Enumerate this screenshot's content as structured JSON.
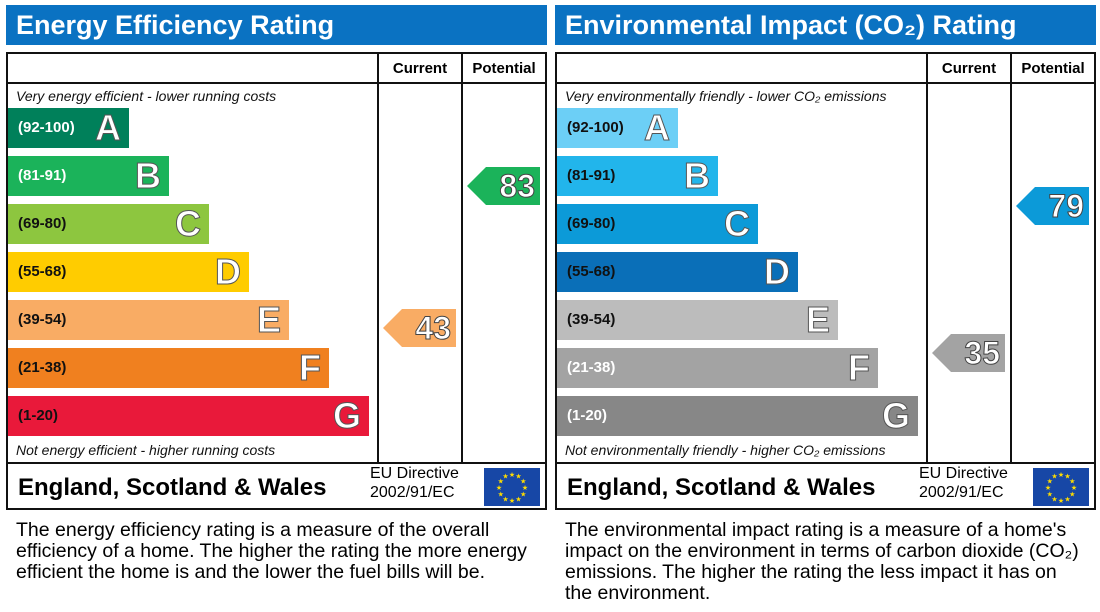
{
  "chart_data": [
    {
      "type": "table",
      "title": "Energy Efficiency Rating",
      "columns": [
        "Current",
        "Potential"
      ],
      "top_note": "Very energy efficient - lower running costs",
      "bottom_note": "Not energy efficient - higher running costs",
      "bands": [
        {
          "letter": "A",
          "range": "(92-100)",
          "color": "#00805a",
          "text": "#fff"
        },
        {
          "letter": "B",
          "range": "(81-91)",
          "color": "#1bb35a",
          "text": "#fff"
        },
        {
          "letter": "C",
          "range": "(69-80)",
          "color": "#8dc63f",
          "text": "#111"
        },
        {
          "letter": "D",
          "range": "(55-68)",
          "color": "#ffcc00",
          "text": "#111"
        },
        {
          "letter": "E",
          "range": "(39-54)",
          "color": "#f9ac64",
          "text": "#111"
        },
        {
          "letter": "F",
          "range": "(21-38)",
          "color": "#f0801f",
          "text": "#111"
        },
        {
          "letter": "G",
          "range": "(1-20)",
          "color": "#e9193a",
          "text": "#111"
        }
      ],
      "current": {
        "value": 43,
        "band": "E",
        "color": "#f9ac64"
      },
      "potential": {
        "value": 83,
        "band": "B",
        "color": "#1bb35a"
      },
      "footer": "England, Scotland & Wales",
      "directive": [
        "EU Directive",
        "2002/91/EC"
      ],
      "description": "The energy efficiency rating is a measure of the overall efficiency of a home. The higher the rating the more energy efficient the home is and the lower the fuel bills will be."
    },
    {
      "type": "table",
      "title": "Environmental Impact (CO₂) Rating",
      "columns": [
        "Current",
        "Potential"
      ],
      "top_note": "Very environmentally friendly - lower CO₂ emissions",
      "bottom_note": "Not environmentally friendly - higher CO₂ emissions",
      "bands": [
        {
          "letter": "A",
          "range": "(92-100)",
          "color": "#6ccff6",
          "text": "#111"
        },
        {
          "letter": "B",
          "range": "(81-91)",
          "color": "#22b5eb",
          "text": "#111"
        },
        {
          "letter": "C",
          "range": "(69-80)",
          "color": "#0c9ad8",
          "text": "#111"
        },
        {
          "letter": "D",
          "range": "(55-68)",
          "color": "#0a6fb8",
          "text": "#111"
        },
        {
          "letter": "E",
          "range": "(39-54)",
          "color": "#bcbcbc",
          "text": "#111"
        },
        {
          "letter": "F",
          "range": "(21-38)",
          "color": "#a3a3a3",
          "text": "#fff"
        },
        {
          "letter": "G",
          "range": "(1-20)",
          "color": "#878787",
          "text": "#fff"
        }
      ],
      "current": {
        "value": 35,
        "band": "F",
        "color": "#a3a3a3"
      },
      "potential": {
        "value": 79,
        "band": "C",
        "color": "#0c9ad8"
      },
      "footer": "England, Scotland & Wales",
      "directive": [
        "EU Directive",
        "2002/91/EC"
      ],
      "description": "The environmental impact rating is a measure of a home's impact on the environment in terms of carbon dioxide (CO₂) emissions. The higher the rating the less impact it has on the environment."
    }
  ]
}
